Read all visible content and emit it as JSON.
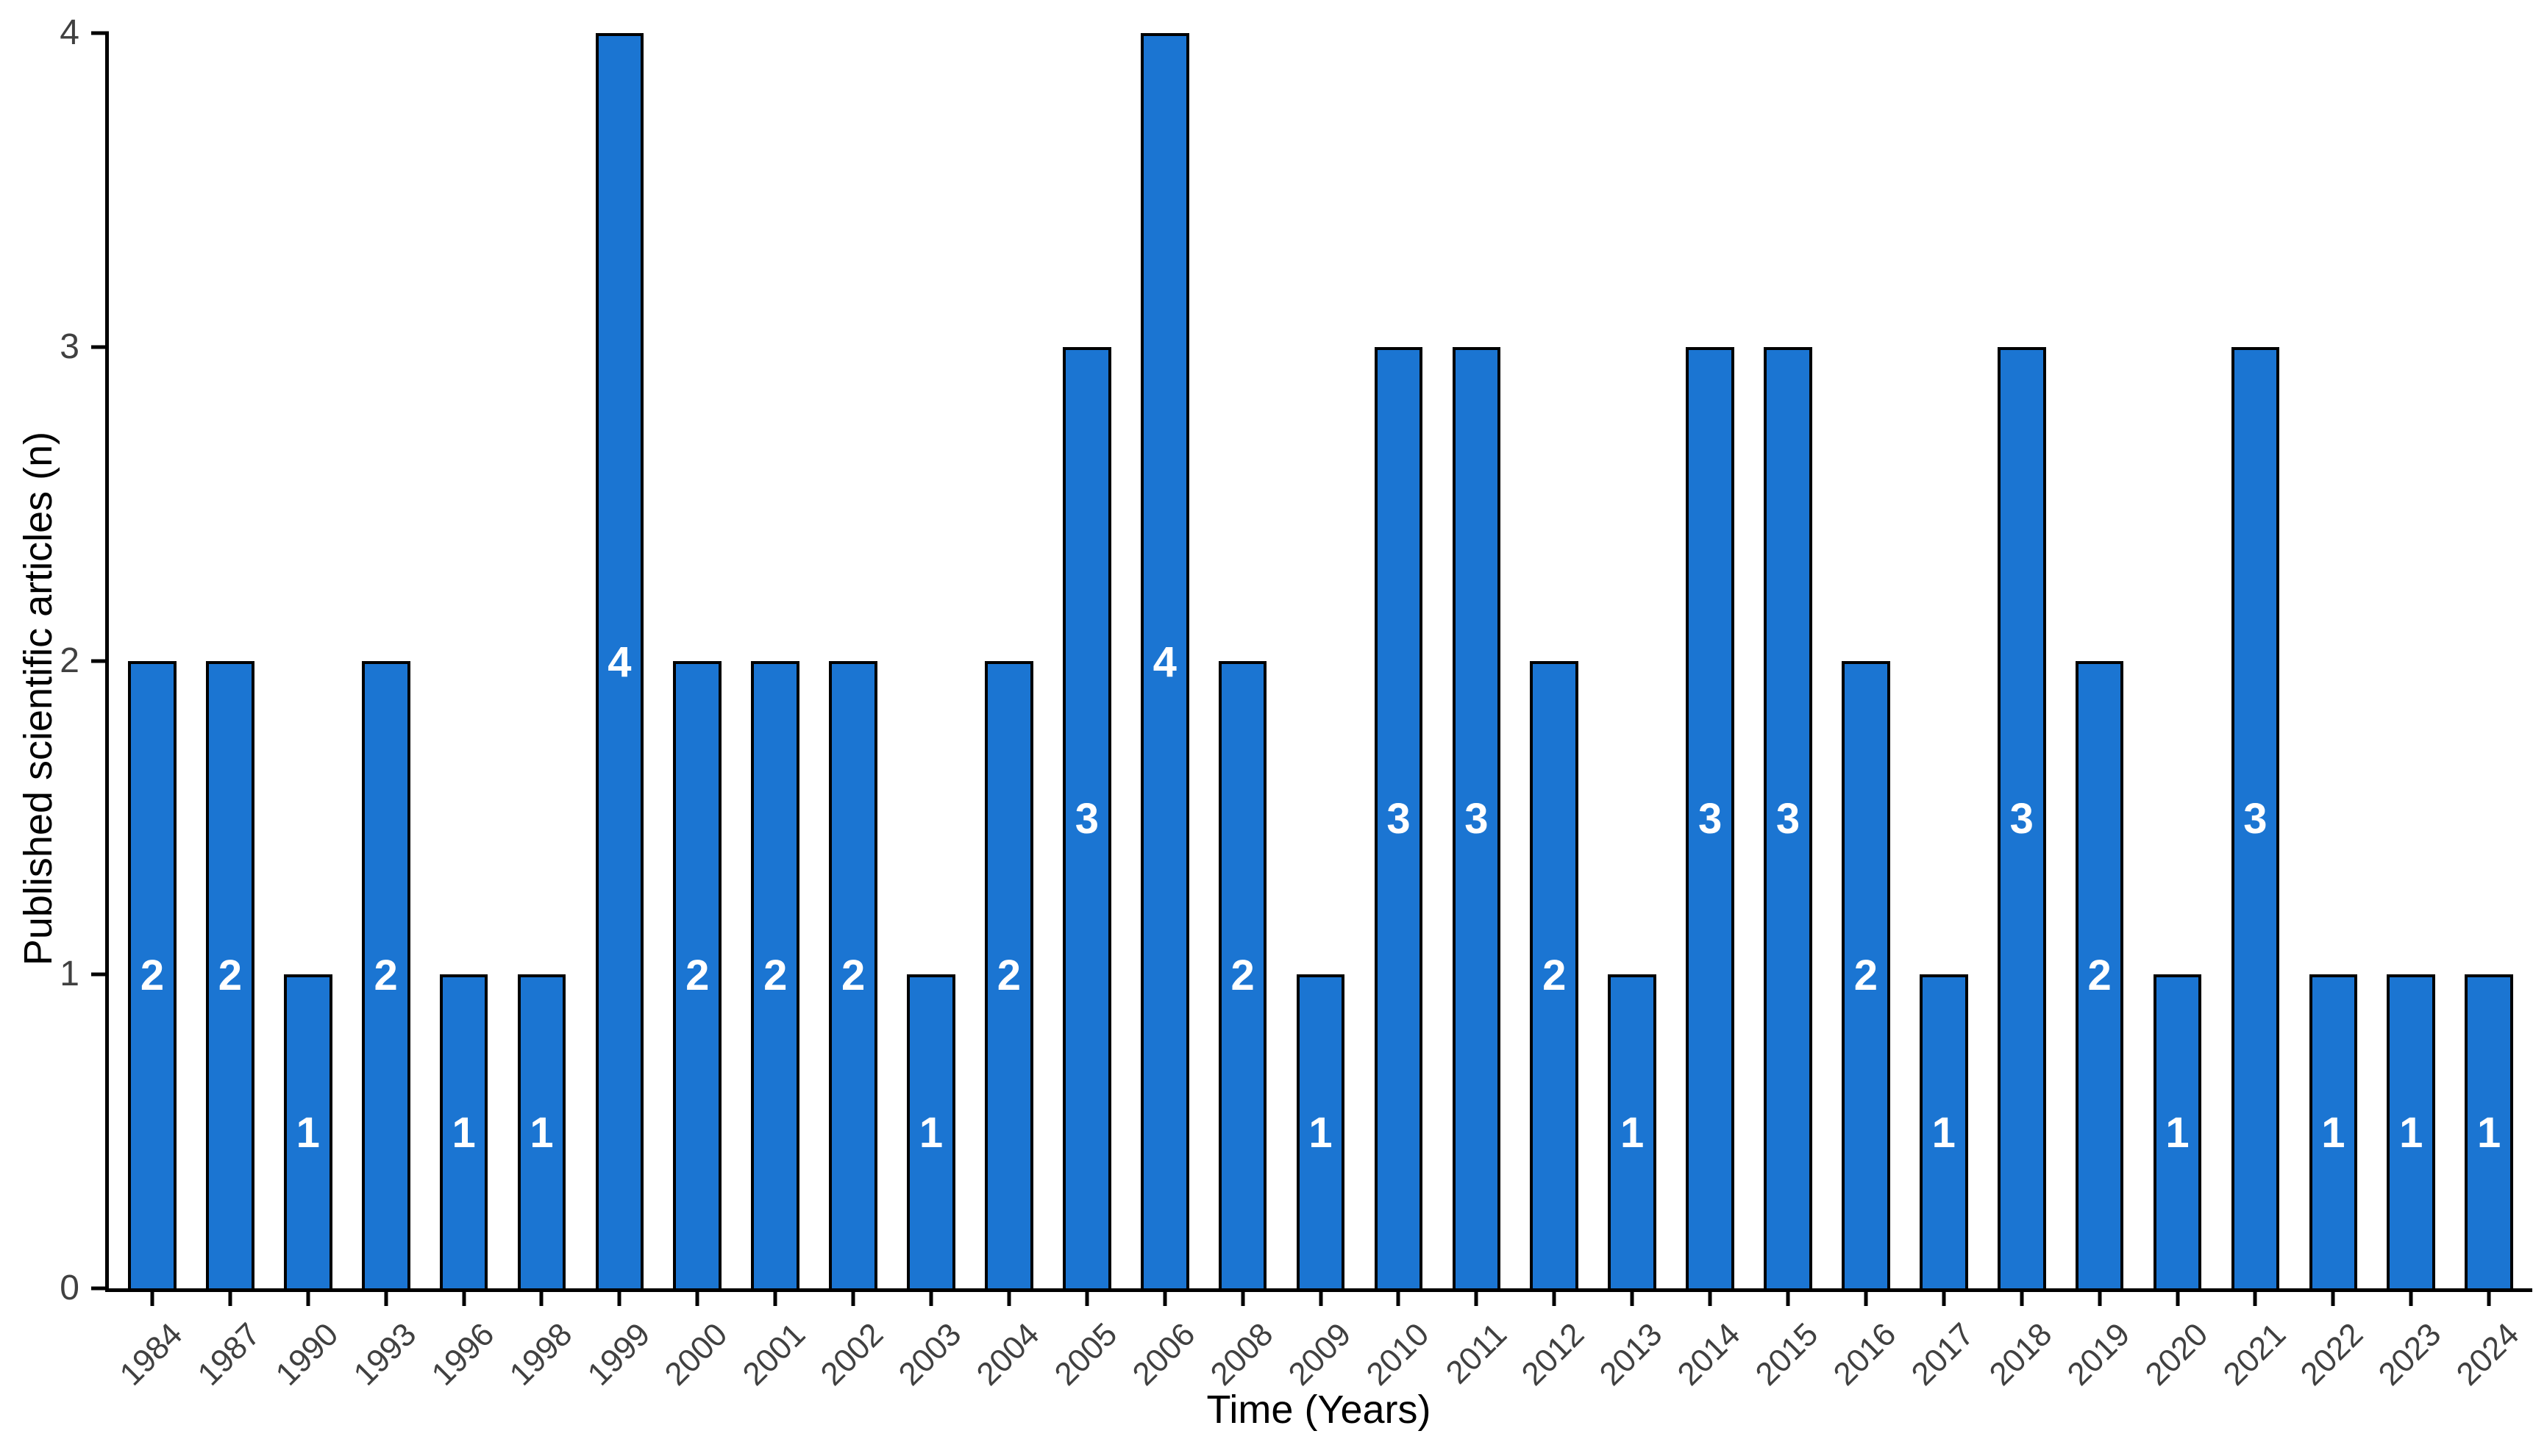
{
  "chart_data": {
    "type": "bar",
    "title": "",
    "xlabel": "Time (Years)",
    "ylabel": "Published scientific articles (n)",
    "categories": [
      "1984",
      "1987",
      "1990",
      "1993",
      "1996",
      "1998",
      "1999",
      "2000",
      "2001",
      "2002",
      "2003",
      "2004",
      "2005",
      "2006",
      "2008",
      "2009",
      "2010",
      "2011",
      "2012",
      "2013",
      "2014",
      "2015",
      "2016",
      "2017",
      "2018",
      "2019",
      "2020",
      "2021",
      "2022",
      "2023",
      "2024"
    ],
    "values": [
      2,
      2,
      1,
      2,
      1,
      1,
      4,
      2,
      2,
      2,
      1,
      2,
      3,
      4,
      2,
      1,
      3,
      3,
      2,
      1,
      3,
      3,
      2,
      1,
      3,
      2,
      1,
      3,
      1,
      1,
      1
    ],
    "bar_labels": [
      "2",
      "2",
      "1",
      "2",
      "1",
      "1",
      "4",
      "2",
      "2",
      "2",
      "1",
      "2",
      "3",
      "4",
      "2",
      "1",
      "3",
      "3",
      "2",
      "1",
      "3",
      "3",
      "2",
      "1",
      "3",
      "2",
      "1",
      "3",
      "1",
      "1",
      "1"
    ],
    "ylim": [
      0,
      4
    ],
    "yticks": [
      "0",
      "1",
      "2",
      "3",
      "4"
    ],
    "grid": false,
    "legend": false,
    "colors": {
      "bar_fill": "#1B75D2",
      "bar_border": "#000000",
      "bar_value_label": "#FFFFFF",
      "axis_line": "#000000",
      "tick_label": "#404040",
      "axis_title": "#000000",
      "background": "#FFFFFF"
    }
  }
}
